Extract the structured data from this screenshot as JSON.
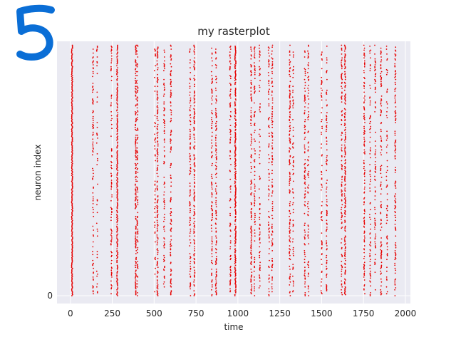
{
  "annotation": {
    "text": "5",
    "color": "#0a6ed6"
  },
  "chart_data": {
    "type": "scatter",
    "title": "my rasterplot",
    "xlabel": "time",
    "ylabel": "neuron index",
    "xlim": [
      -80,
      2030
    ],
    "ylim": [
      -20,
      650
    ],
    "xticks": [
      0,
      250,
      500,
      750,
      1000,
      1250,
      1500,
      1750,
      2000
    ],
    "xtick_labels": [
      "0",
      "250",
      "500",
      "750",
      "1000",
      "1250",
      "1500",
      "1750",
      "2000"
    ],
    "yticks": [
      0
    ],
    "ytick_labels": [
      "0"
    ],
    "grid": true,
    "background": "#eaeaf2",
    "marker_color": "#e60000",
    "neuron_range": [
      0,
      640
    ],
    "spike_columns": [
      {
        "time": 10,
        "density": 1.0
      },
      {
        "time": 135,
        "density": 0.35
      },
      {
        "time": 160,
        "density": 0.15
      },
      {
        "time": 245,
        "density": 0.35
      },
      {
        "time": 280,
        "density": 0.85
      },
      {
        "time": 390,
        "density": 0.6
      },
      {
        "time": 400,
        "density": 0.4
      },
      {
        "time": 505,
        "density": 0.2
      },
      {
        "time": 520,
        "density": 0.55
      },
      {
        "time": 560,
        "density": 0.35
      },
      {
        "time": 600,
        "density": 0.4
      },
      {
        "time": 715,
        "density": 0.35
      },
      {
        "time": 740,
        "density": 0.55
      },
      {
        "time": 845,
        "density": 0.4
      },
      {
        "time": 870,
        "density": 0.4
      },
      {
        "time": 955,
        "density": 0.35
      },
      {
        "time": 985,
        "density": 0.85
      },
      {
        "time": 1080,
        "density": 0.4
      },
      {
        "time": 1100,
        "density": 0.3
      },
      {
        "time": 1130,
        "density": 0.35
      },
      {
        "time": 1185,
        "density": 0.3
      },
      {
        "time": 1205,
        "density": 0.45
      },
      {
        "time": 1310,
        "density": 0.45
      },
      {
        "time": 1330,
        "density": 0.25
      },
      {
        "time": 1400,
        "density": 0.4
      },
      {
        "time": 1420,
        "density": 0.3
      },
      {
        "time": 1500,
        "density": 0.3
      },
      {
        "time": 1530,
        "density": 0.3
      },
      {
        "time": 1620,
        "density": 0.4
      },
      {
        "time": 1640,
        "density": 0.6
      },
      {
        "time": 1755,
        "density": 0.5
      },
      {
        "time": 1790,
        "density": 0.3
      },
      {
        "time": 1820,
        "density": 0.3
      },
      {
        "time": 1855,
        "density": 0.4
      },
      {
        "time": 1890,
        "density": 0.3
      },
      {
        "time": 1940,
        "density": 0.45
      }
    ]
  }
}
